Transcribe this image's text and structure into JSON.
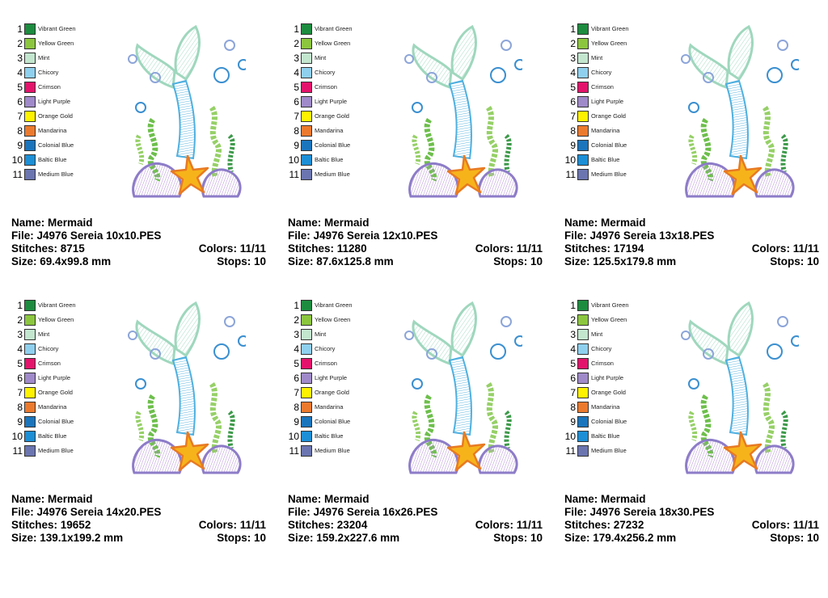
{
  "palette": [
    {
      "num": "1",
      "name": "Vibrant Green",
      "color": "#1d8c3f"
    },
    {
      "num": "2",
      "name": "Yellow Green",
      "color": "#8cc63f"
    },
    {
      "num": "3",
      "name": "Mint",
      "color": "#c3e6cf"
    },
    {
      "num": "4",
      "name": "Chicory",
      "color": "#8fd0ee"
    },
    {
      "num": "5",
      "name": "Crimson",
      "color": "#e3146b"
    },
    {
      "num": "6",
      "name": "Light Purple",
      "color": "#a08ac9"
    },
    {
      "num": "7",
      "name": "Orange Gold",
      "color": "#fff200"
    },
    {
      "num": "8",
      "name": "Mandarina",
      "color": "#ec7a2e"
    },
    {
      "num": "9",
      "name": "Colonial Blue",
      "color": "#1b75bc"
    },
    {
      "num": "10",
      "name": "Baltic Blue",
      "color": "#1c8fd6"
    },
    {
      "num": "11",
      "name": "Medium Blue",
      "color": "#6b75b0"
    }
  ],
  "labels": {
    "name": "Name:",
    "file": "File:",
    "stitches": "Stitches:",
    "colors": "Colors:",
    "size": "Size:",
    "stops": "Stops:"
  },
  "designs": [
    {
      "name": "Mermaid",
      "file": "J4976 Sereia 10x10.PES",
      "stitches": "8715",
      "colors": "11/11",
      "size": "69.4x99.8 mm",
      "stops": "10"
    },
    {
      "name": "Mermaid",
      "file": "J4976 Sereia 12x10.PES",
      "stitches": "11280",
      "colors": "11/11",
      "size": "87.6x125.8 mm",
      "stops": "10"
    },
    {
      "name": "Mermaid",
      "file": "J4976 Sereia 13x18.PES",
      "stitches": "17194",
      "colors": "11/11",
      "size": "125.5x179.8 mm",
      "stops": "10"
    },
    {
      "name": "Mermaid",
      "file": "J4976 Sereia 14x20.PES",
      "stitches": "19652",
      "colors": "11/11",
      "size": "139.1x199.2 mm",
      "stops": "10"
    },
    {
      "name": "Mermaid",
      "file": "J4976 Sereia 16x26.PES",
      "stitches": "23204",
      "colors": "11/11",
      "size": "159.2x227.6 mm",
      "stops": "10"
    },
    {
      "name": "Mermaid",
      "file": "J4976 Sereia 18x30.PES",
      "stitches": "27232",
      "colors": "11/11",
      "size": "179.4x256.2 mm",
      "stops": "10"
    }
  ]
}
